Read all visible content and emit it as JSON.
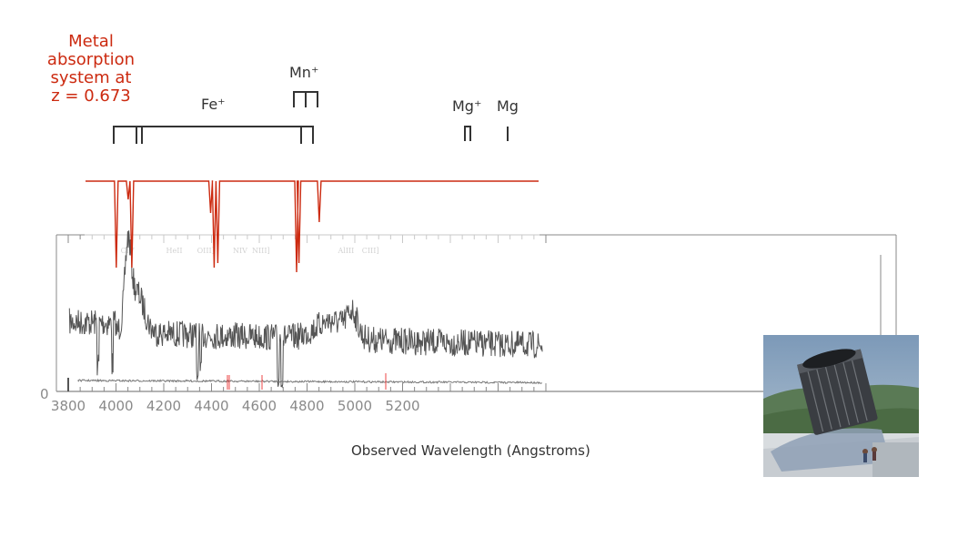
{
  "title_lines": [
    "Metal",
    "absorption",
    "system at",
    "z = 0.673"
  ],
  "ion_labels": {
    "fe": "Fe⁺",
    "mn": "Mn⁺",
    "mgplus": "Mg⁺",
    "mg": "Mg"
  },
  "xlabel": "Observed Wavelength (Angstroms)",
  "colors": {
    "absorption": "#cc2a10",
    "spectrum": "#555555",
    "axis": "#888888"
  },
  "photo_icon": "telescope-photo",
  "chart_data": [
    {
      "type": "line",
      "name": "observed-spectrum",
      "xlim": [
        3800,
        5800
      ],
      "ylabel": "",
      "xlabel": "Observed Wavelength (Angstroms)",
      "x_ticks": [
        3800,
        4000,
        4200,
        4400,
        4600,
        4800,
        5000,
        5200
      ],
      "y_ticks": [
        "0"
      ],
      "emission_line_labels": [
        "CIV",
        "HeII",
        "OIII]",
        "NIV",
        "NIII]",
        "AlIII",
        "CIII]"
      ],
      "emission_line_positions": [
        4050,
        4240,
        4370,
        4520,
        4600,
        4960,
        5060
      ],
      "broad_emission_peaks": [
        4050,
        5000
      ],
      "absorption_dips": [
        3925,
        3985,
        4340,
        4355,
        4680,
        4695
      ]
    },
    {
      "type": "line",
      "name": "absorption-model",
      "redshift": "z = 0.673",
      "line_wavelengths": [
        3925,
        3975,
        3990,
        4320,
        4335,
        4350,
        4680,
        4690,
        4775
      ],
      "line_depths": [
        0.95,
        0.2,
        0.95,
        0.35,
        0.95,
        0.9,
        1.0,
        0.9,
        0.45
      ]
    }
  ]
}
